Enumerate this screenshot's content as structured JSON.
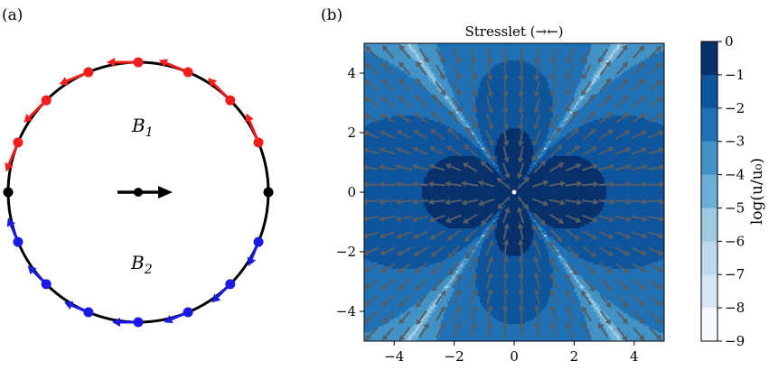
{
  "panel_a": {
    "label": "(a)",
    "region_labels": [
      {
        "text": "B₁",
        "color": "#e41a1c"
      },
      {
        "text": "B₂",
        "color": "#1f1fe0"
      }
    ],
    "colors": {
      "circle": "#000000",
      "upper": "#f21d1d",
      "lower": "#1a1ae6",
      "neutral": "#000000"
    },
    "boundary_point_angles_deg": [
      0,
      22.5,
      45,
      67.5,
      90,
      112.5,
      135,
      157.5,
      180,
      202.5,
      225,
      247.5,
      270,
      292.5,
      315,
      337.5
    ],
    "swimmer_direction": "right"
  },
  "chart_data": {
    "type": "heatmap",
    "panel_label": "(b)",
    "title": "Stresslet (→←)",
    "xlim": [
      -5,
      5
    ],
    "ylim": [
      -5,
      5
    ],
    "xticks": [
      -4,
      -2,
      0,
      2,
      4
    ],
    "yticks": [
      -4,
      -2,
      0,
      2,
      4
    ],
    "tick_labels_x": [
      "−4",
      "−2",
      "0",
      "2",
      "4"
    ],
    "tick_labels_y": [
      "−4",
      "−2",
      "0",
      "2",
      "4"
    ],
    "colorbar": {
      "label": "log(u/u₀)",
      "ticks": [
        0,
        -1,
        -2,
        -3,
        -4,
        -5,
        -6,
        -7,
        -8,
        -9
      ],
      "tick_labels": [
        "0",
        "−1",
        "−2",
        "−3",
        "−4",
        "−5",
        "−6",
        "−7",
        "−8",
        "−9"
      ],
      "range": [
        -9,
        0
      ],
      "levels": [
        {
          "from": -1,
          "to": 0,
          "color": "#08306b"
        },
        {
          "from": -2,
          "to": -1,
          "color": "#0e559c"
        },
        {
          "from": -3,
          "to": -2,
          "color": "#2171b5"
        },
        {
          "from": -4,
          "to": -3,
          "color": "#4292c6"
        },
        {
          "from": -5,
          "to": -4,
          "color": "#6baed6"
        },
        {
          "from": -6,
          "to": -5,
          "color": "#9ecae1"
        },
        {
          "from": -7,
          "to": -6,
          "color": "#bdd7ec"
        },
        {
          "from": -8,
          "to": -7,
          "color": "#d6e6f4"
        },
        {
          "from": -9,
          "to": -8,
          "color": "#f7fbff"
        }
      ]
    },
    "field": "stresslet, axis along x, pusher-type (→←)",
    "arrow_grid": {
      "step": 0.55,
      "xmin": -4.7,
      "ymin": -4.7,
      "count": 18
    },
    "arrow_color": "#555d66",
    "grid": false
  }
}
